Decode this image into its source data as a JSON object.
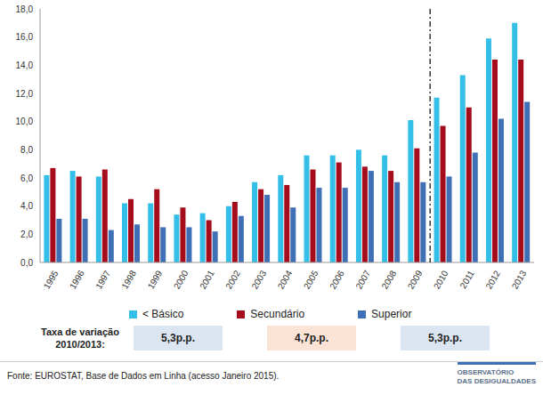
{
  "chart_data": {
    "type": "bar",
    "categories": [
      "1995",
      "1996",
      "1997",
      "1998",
      "1999",
      "2000",
      "2001",
      "2002",
      "2003",
      "2004",
      "2005",
      "2006",
      "2007",
      "2008",
      "2009",
      "2010",
      "2011",
      "2012",
      "2013"
    ],
    "series": [
      {
        "name": "< Básico",
        "color": "#33bfe8",
        "values": [
          6.2,
          6.5,
          6.1,
          4.2,
          4.2,
          3.4,
          3.5,
          4.0,
          5.7,
          6.2,
          7.6,
          7.6,
          8.0,
          7.6,
          10.1,
          11.7,
          13.3,
          15.9,
          17.0
        ]
      },
      {
        "name": "Secundário",
        "color": "#a50d1c",
        "values": [
          6.7,
          6.1,
          6.6,
          4.5,
          5.2,
          3.9,
          3.0,
          4.3,
          5.2,
          5.5,
          6.6,
          7.1,
          6.8,
          6.5,
          8.1,
          9.7,
          11.0,
          14.4,
          14.4
        ]
      },
      {
        "name": "Superior",
        "color": "#3f6fb5",
        "values": [
          3.1,
          3.1,
          2.3,
          2.7,
          2.5,
          2.5,
          2.2,
          3.3,
          4.8,
          3.9,
          5.3,
          5.3,
          6.5,
          5.7,
          5.7,
          6.1,
          7.8,
          10.2,
          11.4
        ]
      }
    ],
    "ylim": [
      0,
      18
    ],
    "yticks": [
      {
        "value": 0,
        "label": "0,0"
      },
      {
        "value": 2,
        "label": "2,0"
      },
      {
        "value": 4,
        "label": "4,0"
      },
      {
        "value": 6,
        "label": "6,0"
      },
      {
        "value": 8,
        "label": "8,0"
      },
      {
        "value": 10,
        "label": "10,0"
      },
      {
        "value": 12,
        "label": "12,0"
      },
      {
        "value": 14,
        "label": "14,0"
      },
      {
        "value": 16,
        "label": "16,0"
      },
      {
        "value": 18,
        "label": "18,0"
      }
    ],
    "grid": false,
    "legend": "bottom",
    "annotations": {
      "variation_title": "Taxa de variação 2010/2013:",
      "variation": [
        "5,3p.p.",
        "4,7p.p.",
        "5,3p.p."
      ],
      "source": "Fonte: EUROSTAT, Base de Dados em Linha (acesso Janeiro 2015).",
      "logo": [
        "OBSERVATÓRIO",
        "DAS DESIGUALDADES"
      ]
    }
  }
}
